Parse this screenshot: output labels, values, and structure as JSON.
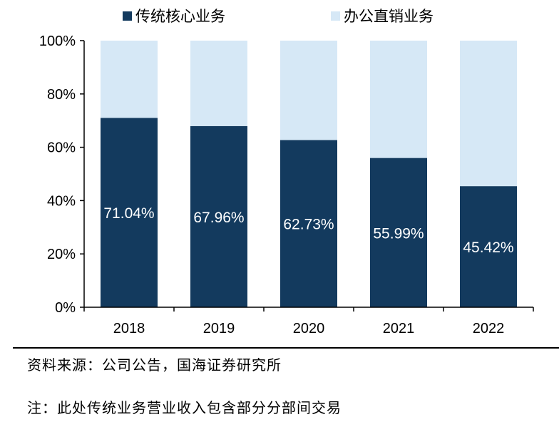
{
  "chart_data": {
    "type": "bar",
    "stacked": true,
    "categories": [
      "2018",
      "2019",
      "2020",
      "2021",
      "2022"
    ],
    "series": [
      {
        "name": "传统核心业务",
        "values": [
          71.04,
          67.96,
          62.73,
          55.99,
          45.42
        ],
        "color": "#133a5e",
        "labels": [
          "71.04%",
          "67.96%",
          "62.73%",
          "55.99%",
          "45.42%"
        ]
      },
      {
        "name": "办公直销业务",
        "values": [
          28.96,
          32.04,
          37.27,
          44.01,
          54.58
        ],
        "color": "#d6e8f6"
      }
    ],
    "ylim": [
      0,
      100
    ],
    "yticks": [
      "0%",
      "20%",
      "40%",
      "60%",
      "80%",
      "100%"
    ],
    "legend_position": "top",
    "grid": false
  },
  "notes": {
    "source": "资料来源：公司公告，国海证券研究所",
    "footnote": "注：此处传统业务营业收入包含部分分部间交易"
  }
}
